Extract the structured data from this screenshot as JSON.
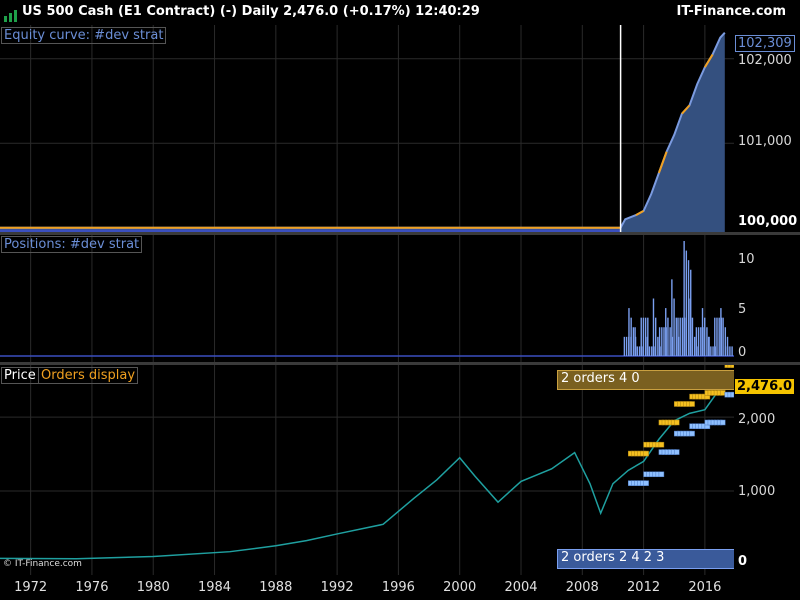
{
  "header": {
    "title": "US 500 Cash (E1 Contract) (-)   Daily   2,476.0 (+0.17%)   12:40:29",
    "brand": "IT-Finance.com"
  },
  "panels": {
    "equity": {
      "label": "Equity curve: #dev strat",
      "last_value": "102,309",
      "ticks": [
        "102,000",
        "101,000",
        "100,000"
      ]
    },
    "positions": {
      "label": "Positions: #dev strat",
      "ticks": [
        "10",
        "5",
        "0"
      ]
    },
    "price": {
      "label": "Price",
      "orders_label": "Orders display",
      "last_value": "2,476.0",
      "ticks": [
        "2,000",
        "1,000",
        "0"
      ],
      "orders_top": "2 orders 4 0",
      "orders_bottom": "2 orders 2   4 2   3",
      "copyright": "© IT-Finance.com"
    }
  },
  "x_axis": [
    "1972",
    "1976",
    "1980",
    "1984",
    "1988",
    "1992",
    "1996",
    "2000",
    "2004",
    "2008",
    "2012",
    "2016"
  ],
  "colors": {
    "equity_fill": "#34507f",
    "equity_line": "#7b9be0",
    "orange": "#f0a020",
    "blue_label": "#6b8ed6",
    "price_line": "#1fa0a0",
    "positions": "#7a9ff0",
    "grid": "#2a2a2a"
  },
  "chart_data": [
    {
      "type": "area",
      "title": "Equity curve: #dev strat",
      "x": [
        1970,
        2010.5,
        2010.8,
        2011.5,
        2012.0,
        2012.5,
        2013.0,
        2013.5,
        2014.0,
        2014.5,
        2015.0,
        2015.5,
        2016.0,
        2016.5,
        2017.0,
        2017.3
      ],
      "values": [
        100000,
        100000,
        100100,
        100150,
        100200,
        100400,
        100650,
        100900,
        101100,
        101350,
        101450,
        101700,
        101900,
        102050,
        102250,
        102309
      ],
      "ylim": [
        99950,
        102400
      ]
    },
    {
      "type": "bar",
      "title": "Positions: #dev strat",
      "x": [
        2010.7,
        2011.0,
        2011.4,
        2011.8,
        2012.2,
        2012.6,
        2013.0,
        2013.4,
        2013.8,
        2014.2,
        2014.6,
        2015.0,
        2015.4,
        2015.8,
        2016.2,
        2016.6,
        2017.0,
        2017.3
      ],
      "values": [
        2,
        5,
        3,
        4,
        2,
        6,
        3,
        5,
        8,
        4,
        12,
        6,
        3,
        5,
        2,
        4,
        5,
        1
      ],
      "ylim": [
        0,
        12
      ]
    },
    {
      "type": "line",
      "title": "Price",
      "x": [
        1970,
        1975,
        1980,
        1985,
        1988,
        1990,
        1992,
        1995,
        1997,
        1998.5,
        2000,
        2001,
        2002.5,
        2004,
        2006,
        2007.5,
        2008.5,
        2009.2,
        2010,
        2011,
        2012,
        2013,
        2014,
        2015,
        2016,
        2017.3
      ],
      "values": [
        90,
        85,
        115,
        180,
        260,
        330,
        420,
        550,
        900,
        1150,
        1450,
        1200,
        850,
        1130,
        1300,
        1520,
        1100,
        700,
        1100,
        1280,
        1400,
        1700,
        1950,
        2050,
        2100,
        2476
      ],
      "ylim": [
        0,
        2650
      ]
    }
  ]
}
